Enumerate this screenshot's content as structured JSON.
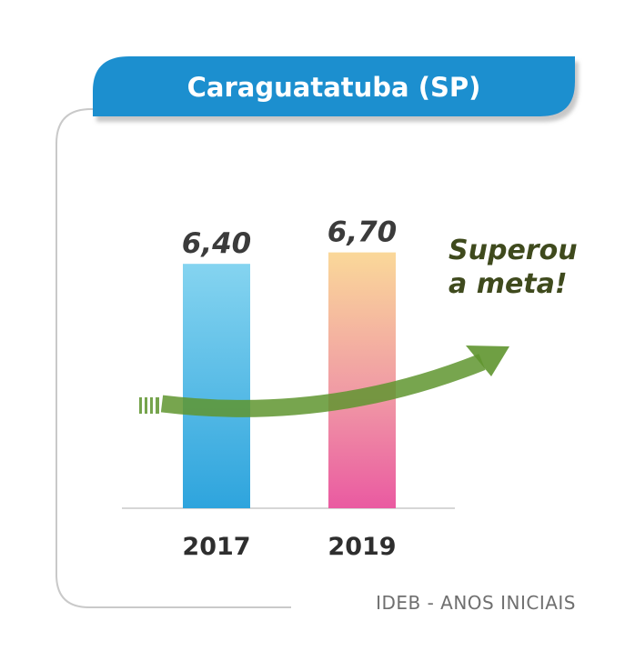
{
  "chart_data": {
    "type": "bar",
    "title": "Caraguatatuba (SP)",
    "categories": [
      "2017",
      "2019"
    ],
    "values": [
      6.4,
      6.7
    ],
    "value_labels": [
      "6,40",
      "6,70"
    ],
    "annotation": [
      "Superou",
      "a meta!"
    ],
    "footer": "IDEB - ANOS INICIAIS",
    "grid": false,
    "legend": "none"
  },
  "colors": {
    "title_bg": "#1b8fcf",
    "bar_2017_top": "#85d4f0",
    "bar_2017_bottom": "#2ea4dd",
    "bar_2019_top": "#fad899",
    "bar_2019_bottom": "#ea5aa1",
    "arrow": "#5f952f"
  },
  "icons": {
    "trend": "trend-arrow-icon"
  }
}
